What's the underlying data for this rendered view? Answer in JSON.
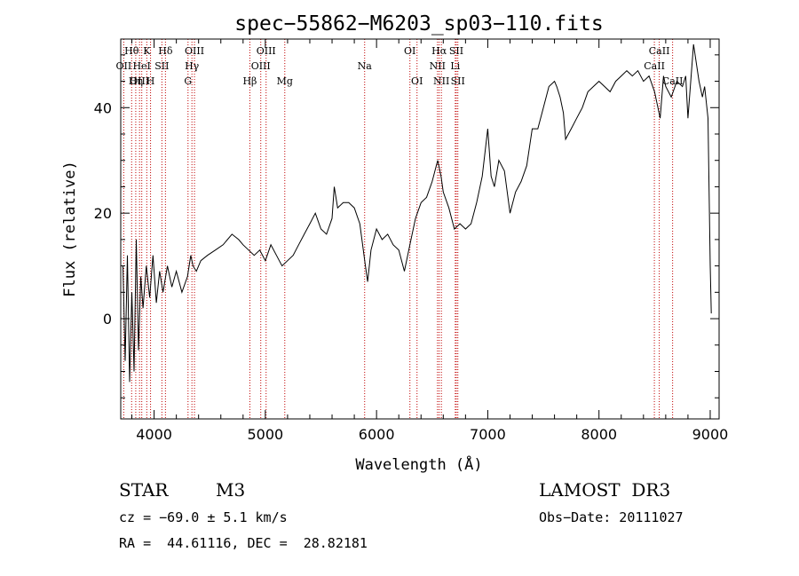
{
  "chart_data": {
    "type": "line",
    "title": "spec−55862−M6203_sp03−110.fits",
    "xlabel": "Wavelength (Å)",
    "ylabel": "Flux (relative)",
    "xlim": [
      3700,
      9080
    ],
    "ylim": [
      -19,
      53
    ],
    "xticks": [
      4000,
      5000,
      6000,
      7000,
      8000,
      9000
    ],
    "yticks": [
      0,
      20,
      40
    ],
    "series": [
      {
        "name": "spectrum",
        "x": [
          3720,
          3740,
          3760,
          3780,
          3800,
          3820,
          3840,
          3860,
          3880,
          3900,
          3930,
          3960,
          3990,
          4020,
          4050,
          4080,
          4120,
          4160,
          4200,
          4250,
          4300,
          4330,
          4350,
          4380,
          4420,
          4480,
          4550,
          4620,
          4700,
          4760,
          4800,
          4850,
          4900,
          4950,
          5000,
          5050,
          5100,
          5150,
          5200,
          5250,
          5300,
          5350,
          5400,
          5450,
          5500,
          5550,
          5600,
          5620,
          5650,
          5700,
          5750,
          5800,
          5850,
          5900,
          5920,
          5950,
          6000,
          6050,
          6100,
          6150,
          6200,
          6250,
          6300,
          6350,
          6400,
          6450,
          6500,
          6550,
          6580,
          6600,
          6650,
          6700,
          6750,
          6800,
          6850,
          6900,
          6950,
          7000,
          7030,
          7060,
          7100,
          7150,
          7200,
          7250,
          7300,
          7350,
          7400,
          7450,
          7500,
          7550,
          7600,
          7620,
          7650,
          7680,
          7700,
          7750,
          7800,
          7850,
          7900,
          7950,
          8000,
          8050,
          8100,
          8150,
          8200,
          8250,
          8300,
          8350,
          8400,
          8450,
          8500,
          8530,
          8550,
          8580,
          8600,
          8650,
          8700,
          8750,
          8780,
          8800,
          8850,
          8900,
          8930,
          8950,
          8980,
          9000,
          9010
        ],
        "y": [
          10,
          -8,
          12,
          -12,
          5,
          -10,
          15,
          -6,
          8,
          2,
          10,
          4,
          12,
          3,
          9,
          5,
          10,
          6,
          9,
          5,
          8,
          12,
          10,
          9,
          11,
          12,
          13,
          14,
          16,
          15,
          14,
          13,
          12,
          13,
          11,
          14,
          12,
          10,
          11,
          12,
          14,
          16,
          18,
          20,
          17,
          16,
          19,
          25,
          21,
          22,
          22,
          21,
          18,
          10,
          7,
          13,
          17,
          15,
          16,
          14,
          13,
          9,
          14,
          19,
          22,
          23,
          26,
          30,
          27,
          24,
          21,
          17,
          18,
          17,
          18,
          22,
          27,
          36,
          27,
          25,
          30,
          28,
          20,
          24,
          26,
          29,
          36,
          36,
          40,
          44,
          45,
          44,
          42,
          39,
          34,
          36,
          38,
          40,
          43,
          44,
          45,
          44,
          43,
          45,
          46,
          47,
          46,
          47,
          45,
          46,
          43,
          40,
          38,
          46,
          44,
          42,
          45,
          44,
          46,
          38,
          52,
          45,
          42,
          44,
          38,
          10,
          1
        ]
      }
    ],
    "line_markers": [
      {
        "label": "Hθ",
        "x": 3798,
        "row": 1
      },
      {
        "label": "K",
        "x": 3934,
        "row": 1
      },
      {
        "label": "Hδ",
        "x": 4102,
        "row": 1
      },
      {
        "label": "OIII",
        "x": 4363,
        "row": 1
      },
      {
        "label": "OIII",
        "x": 5007,
        "row": 1
      },
      {
        "label": "OI",
        "x": 6300,
        "row": 1
      },
      {
        "label": "Hα",
        "x": 6563,
        "row": 1
      },
      {
        "label": "SII",
        "x": 6717,
        "row": 1
      },
      {
        "label": "CaII",
        "x": 8542,
        "row": 1
      },
      {
        "label": "OII",
        "x": 3727,
        "row": 2
      },
      {
        "label": "HeI",
        "x": 3889,
        "row": 2
      },
      {
        "label": "SII",
        "x": 4070,
        "row": 2
      },
      {
        "label": "Hγ",
        "x": 4340,
        "row": 2
      },
      {
        "label": "OIII",
        "x": 4959,
        "row": 2
      },
      {
        "label": "Na",
        "x": 5893,
        "row": 2
      },
      {
        "label": "NII",
        "x": 6548,
        "row": 2
      },
      {
        "label": "Li",
        "x": 6708,
        "row": 2
      },
      {
        "label": "CaII",
        "x": 8498,
        "row": 2
      },
      {
        "label": "OIII",
        "x": 3869,
        "row": 3
      },
      {
        "label": "Hη",
        "x": 3835,
        "row": 3
      },
      {
        "label": "H",
        "x": 3968,
        "row": 3
      },
      {
        "label": "G",
        "x": 4305,
        "row": 3
      },
      {
        "label": "Hβ",
        "x": 4861,
        "row": 3
      },
      {
        "label": "Mg",
        "x": 5175,
        "row": 3
      },
      {
        "label": "OI",
        "x": 6364,
        "row": 3
      },
      {
        "label": "NII",
        "x": 6583,
        "row": 3
      },
      {
        "label": "SII",
        "x": 6731,
        "row": 3
      },
      {
        "label": "CaII",
        "x": 8662,
        "row": 3
      }
    ]
  },
  "info": {
    "object_class": "STAR",
    "subclass": "M3",
    "survey": "LAMOST  DR3",
    "velocity": "cz = −69.0 ± 5.1 km/s",
    "obs_date": "Obs−Date: 20111027",
    "coords": "RA =  44.61116, DEC =  28.82181"
  },
  "colors": {
    "marker": "#c00000",
    "axis": "#000000",
    "spectrum": "#000000"
  }
}
